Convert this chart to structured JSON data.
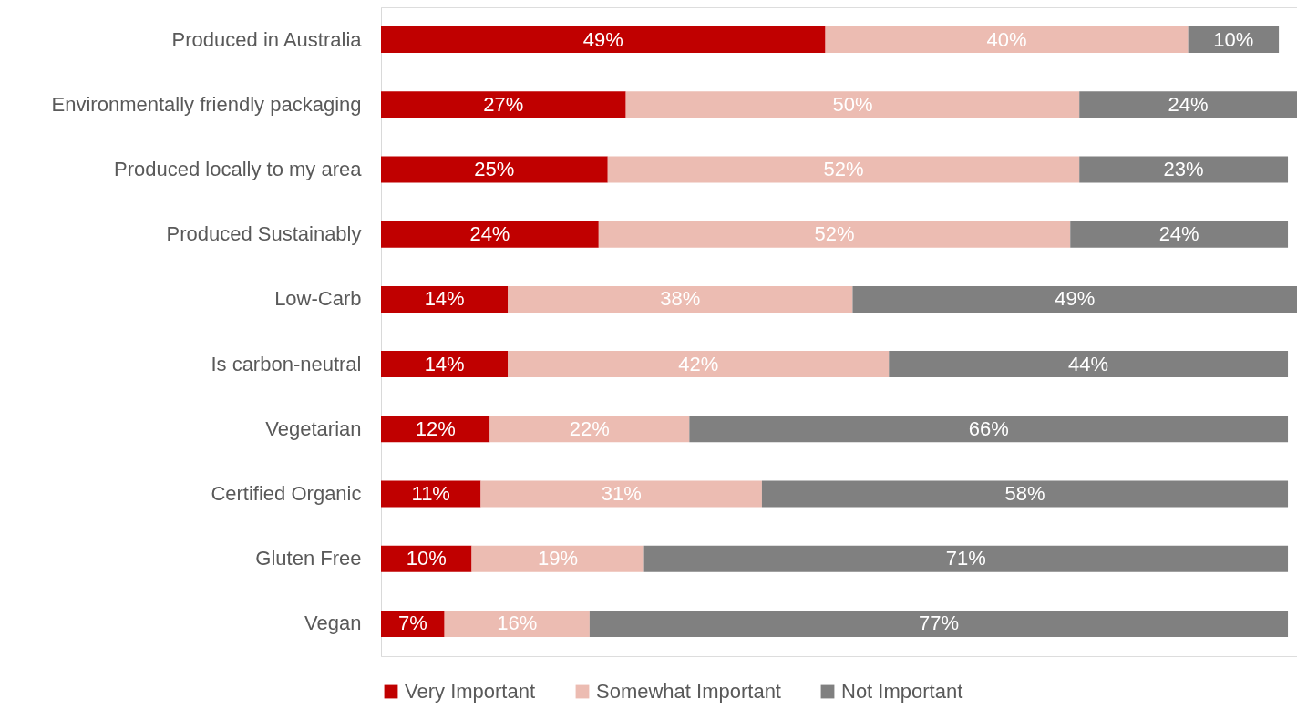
{
  "chart_data": {
    "type": "bar",
    "orientation": "horizontal",
    "stacked": true,
    "legend": "bottom",
    "grid": false,
    "tick_labels": "y",
    "categories": [
      "Produced in Australia",
      "Environmentally friendly packaging",
      "Produced locally to my area",
      "Produced Sustainably",
      "Low-Carb",
      "Is carbon-neutral",
      "Vegetarian",
      "Certified Organic",
      "Gluten Free",
      "Vegan"
    ],
    "series": [
      {
        "name": "Very Important",
        "color": "#c00000",
        "values": [
          49,
          27,
          25,
          24,
          14,
          14,
          12,
          11,
          10,
          7
        ],
        "value_labels": [
          "49%",
          "27%",
          "25%",
          "24%",
          "14%",
          "14%",
          "12%",
          "11%",
          "10%",
          "7%"
        ]
      },
      {
        "name": "Somewhat Important",
        "color": "#ecbcb2",
        "values": [
          40,
          50,
          52,
          52,
          38,
          42,
          22,
          31,
          19,
          16
        ],
        "value_labels": [
          "40%",
          "50%",
          "52%",
          "52%",
          "38%",
          "42%",
          "22%",
          "31%",
          "19%",
          "16%"
        ]
      },
      {
        "name": "Not Important",
        "color": "#808080",
        "values": [
          10,
          24,
          23,
          24,
          49,
          44,
          66,
          58,
          71,
          77
        ],
        "value_labels": [
          "10%",
          "24%",
          "23%",
          "24%",
          "49%",
          "44%",
          "66%",
          "58%",
          "71%",
          "77%"
        ]
      }
    ]
  }
}
